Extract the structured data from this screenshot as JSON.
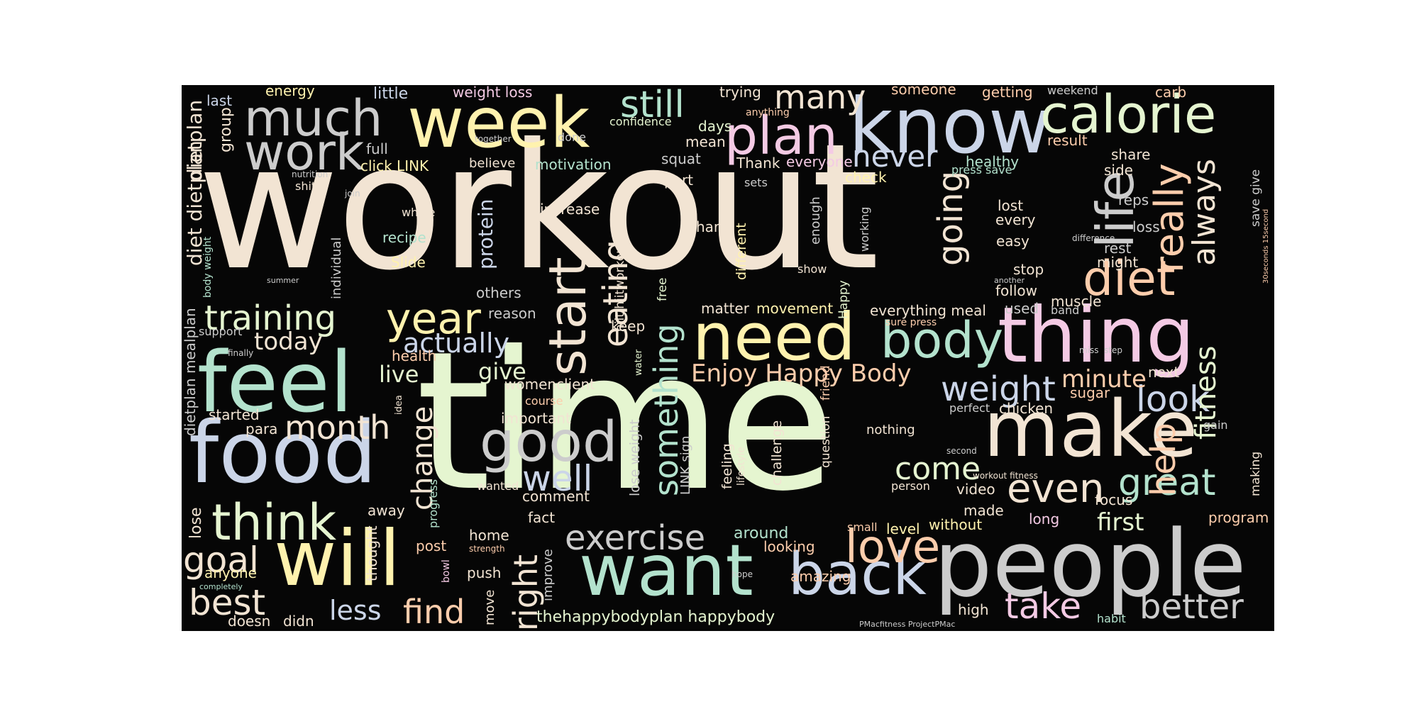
{
  "palette": {
    "background": "#060606",
    "cream": "#f2e4d3",
    "mint": "#b3e2cd",
    "lime": "#e5f5d0",
    "yellow": "#fff2ae",
    "peach": "#fdcdac",
    "pink": "#f4cae4",
    "lavender": "#cbd5e8",
    "gray": "#cccccc"
  },
  "words": {
    "workout": "workout",
    "time": "time",
    "people": "people",
    "know": "know",
    "week": "week",
    "feel": "feel",
    "food": "food",
    "will": "will",
    "make": "make",
    "thing": "thing",
    "want": "want",
    "need": "need",
    "calorie": "calorie",
    "much": "much",
    "work": "work",
    "plan": "plan",
    "life": "life",
    "start": "start",
    "body": "body",
    "back": "back",
    "think": "think",
    "good": "good",
    "year": "year",
    "diet": "diet",
    "love": "love",
    "training": "training",
    "exercise": "exercise",
    "even": "even",
    "really": "really",
    "better": "better",
    "take": "take",
    "find": "find",
    "best": "best",
    "goal": "goal",
    "month": "month",
    "well": "well",
    "great": "great",
    "weight": "weight",
    "look": "look",
    "come": "come",
    "right": "right",
    "help": "help",
    "still": "still",
    "many": "many",
    "never": "never",
    "always": "always",
    "going": "going",
    "eating": "eating",
    "actually": "actually",
    "today": "today",
    "something": "something",
    "change": "change",
    "fitness": "fitness",
    "less": "less",
    "first": "first",
    "minute": "minute",
    "enjoy_happy_body": "Enjoy Happy Body",
    "give": "give",
    "live": "live",
    "think_small": "protein",
    "energy": "energy",
    "little": "little",
    "weight_loss": "weight loss",
    "trying": "trying",
    "someone": "someone",
    "getting": "getting",
    "weekend": "weekend",
    "carb": "carb",
    "last": "last",
    "dietplan": "dietplan",
    "diet_dietplan": "diet dietplan",
    "group": "group",
    "full": "full",
    "together": "together",
    "done": "done",
    "confidence": "confidence",
    "days": "days",
    "mean": "mean",
    "anything": "anything",
    "result": "result",
    "share": "share",
    "side": "side",
    "click_link": "click LINK",
    "believe": "believe",
    "motivation": "motivation",
    "squat": "squat",
    "part": "part",
    "thank": "Thank",
    "everyone": "everyone",
    "healthy": "healthy",
    "press_save": "press save",
    "nutrition": "nutrition",
    "shit": "shit",
    "join": "join",
    "sets": "sets",
    "check": "check",
    "lost": "lost",
    "every": "every",
    "reps": "reps",
    "loss": "loss",
    "save_give": "save give",
    "seconds": "30seconds 15second",
    "whole": "whole",
    "increase": "increase",
    "recipe": "recipe",
    "slide": "Slide",
    "hard": "hard",
    "different": "different",
    "enough": "enough",
    "working": "working",
    "difference": "difference",
    "rest": "rest",
    "might": "might",
    "easy": "easy",
    "hiit_hiitworkout": "hiit hiitworkout",
    "free": "free",
    "show": "show",
    "stop": "stop",
    "follow": "follow",
    "another": "another",
    "happy": "Happy",
    "body_weight": "body weight",
    "summer": "summer",
    "individual": "individual",
    "others": "others",
    "reason": "reason",
    "dietplan_mealplan": "dietplan mealplan",
    "support": "support",
    "finally": "finally",
    "keep": "keep",
    "matter": "matter",
    "movement": "movement",
    "everything_meal": "everything meal",
    "sure_press": "sure press",
    "used": "used",
    "band": "band",
    "muscle": "muscle",
    "miss": "miss",
    "step": "step",
    "next": "next",
    "health": "health",
    "water": "water",
    "womenclient": "womenclient",
    "course": "course",
    "idea": "idea",
    "friend": "friend",
    "sugar": "sugar",
    "perfect": "perfect",
    "chicken": "chicken",
    "started": "started",
    "para": "para",
    "important": "important",
    "nothing": "nothing",
    "gain": "gain",
    "second": "second",
    "lose_weight": "lose weight",
    "link_sign": "LINK sign",
    "feeling": "feeling",
    "lifestyle": "lifestyle",
    "challenge": "challenge",
    "question": "question",
    "workout_fitness": "workout fitness",
    "making": "making",
    "person": "person",
    "video": "video",
    "focus": "focus",
    "wanted": "wanted",
    "comment": "comment",
    "progress": "progress",
    "lose": "lose",
    "away": "away",
    "fact": "fact",
    "made": "made",
    "long": "long",
    "program": "program",
    "without": "without",
    "level": "level",
    "small": "small",
    "around": "around",
    "looking": "looking",
    "home": "home",
    "post": "post",
    "strength": "strength",
    "thought": "thought",
    "anyone": "anyone",
    "bowl": "bowl",
    "improve": "improve",
    "push": "push",
    "hope": "hope",
    "amazing": "amazing",
    "completely": "completely",
    "move": "move",
    "doesn": "doesn",
    "didn": "didn",
    "thehappybodyplan_happybody": "thehappybodyplan happybody",
    "high": "high",
    "habit": "habit",
    "pmac": "PMacfitness ProjectPMac"
  }
}
